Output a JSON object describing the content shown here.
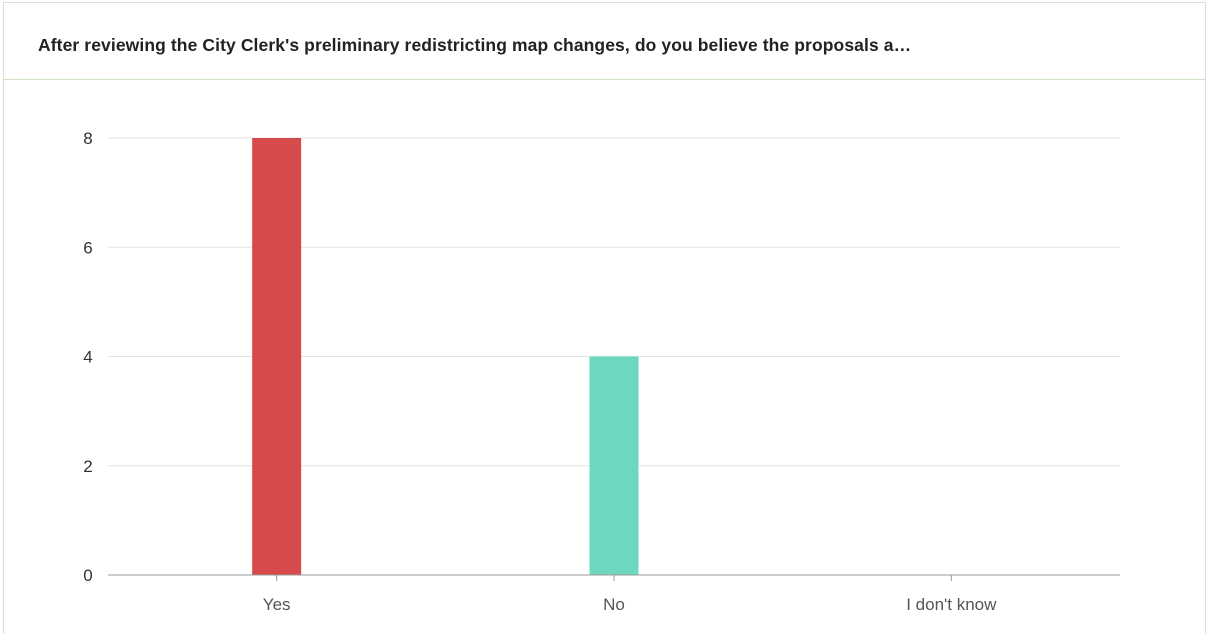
{
  "card": {
    "title": "After reviewing the City Clerk's preliminary redistricting map changes, do you believe the proposals a…"
  },
  "chart_data": {
    "type": "bar",
    "title": "After reviewing the City Clerk's preliminary redistricting map changes, do you believe the proposals a…",
    "xlabel": "",
    "ylabel": "",
    "categories": [
      "Yes",
      "No",
      "I don't know"
    ],
    "values": [
      8,
      4,
      0
    ],
    "yticks": [
      0,
      2,
      4,
      6,
      8
    ],
    "ylim": [
      0,
      8
    ],
    "grid": true,
    "legend": "none",
    "colors": [
      "#d64a4b",
      "#6dd7bf",
      "#f4c542"
    ]
  }
}
